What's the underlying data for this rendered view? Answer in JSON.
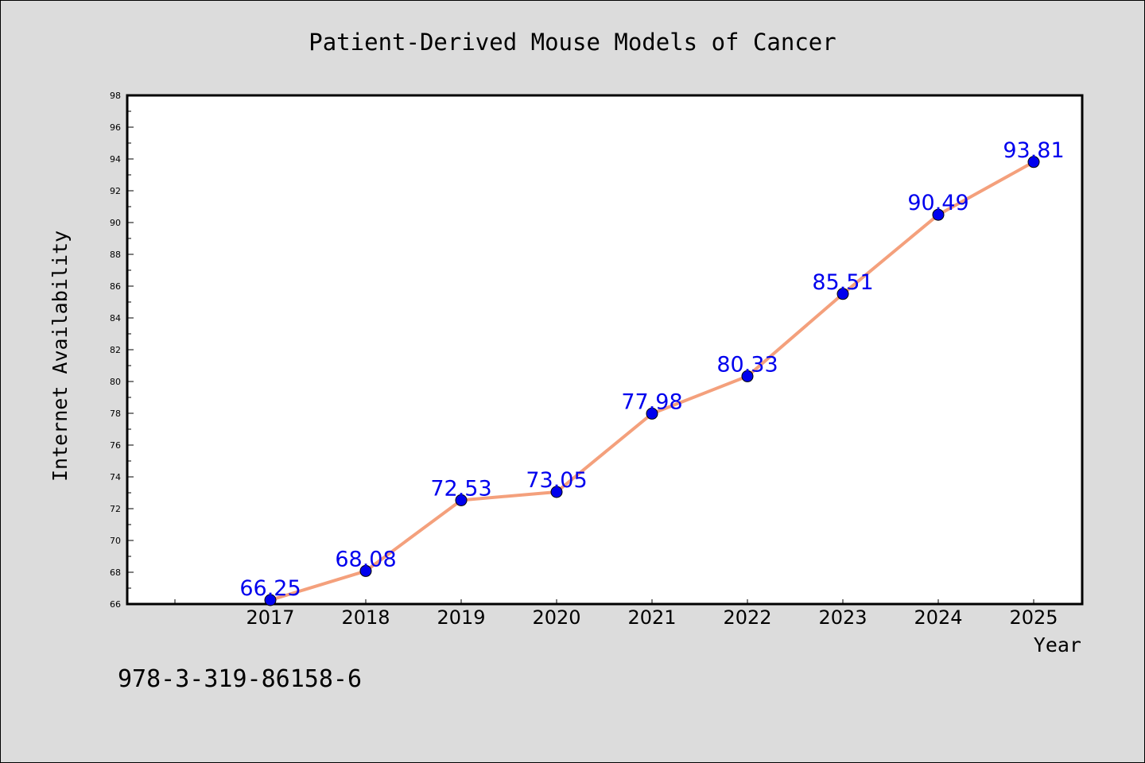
{
  "chart_data": {
    "type": "line",
    "title": "Patient-Derived Mouse Models of Cancer",
    "xlabel": "Year",
    "ylabel": "Internet Availability",
    "categories": [
      "2017",
      "2018",
      "2019",
      "2020",
      "2021",
      "2022",
      "2023",
      "2024",
      "2025"
    ],
    "series": [
      {
        "values": [
          66.25,
          68.08,
          72.53,
          73.05,
          77.98,
          80.33,
          85.51,
          90.49,
          93.81
        ],
        "data_labels": [
          "66.25",
          "68.08",
          "72.53",
          "73.05",
          "77.98",
          "80.33",
          "85.51",
          "90.49",
          "93.81"
        ],
        "line_color": "#f4a07c",
        "marker_color": "#0000ee",
        "label_color": "#0000ee"
      }
    ],
    "ylim": [
      66,
      98
    ],
    "yticks": [
      "66",
      "68",
      "70",
      "72",
      "74",
      "76",
      "78",
      "80",
      "82",
      "84",
      "86",
      "88",
      "90",
      "92",
      "94",
      "96",
      "98"
    ],
    "grid": false,
    "legend": "none"
  },
  "footer": {
    "isbn": "978-3-319-86158-6"
  }
}
